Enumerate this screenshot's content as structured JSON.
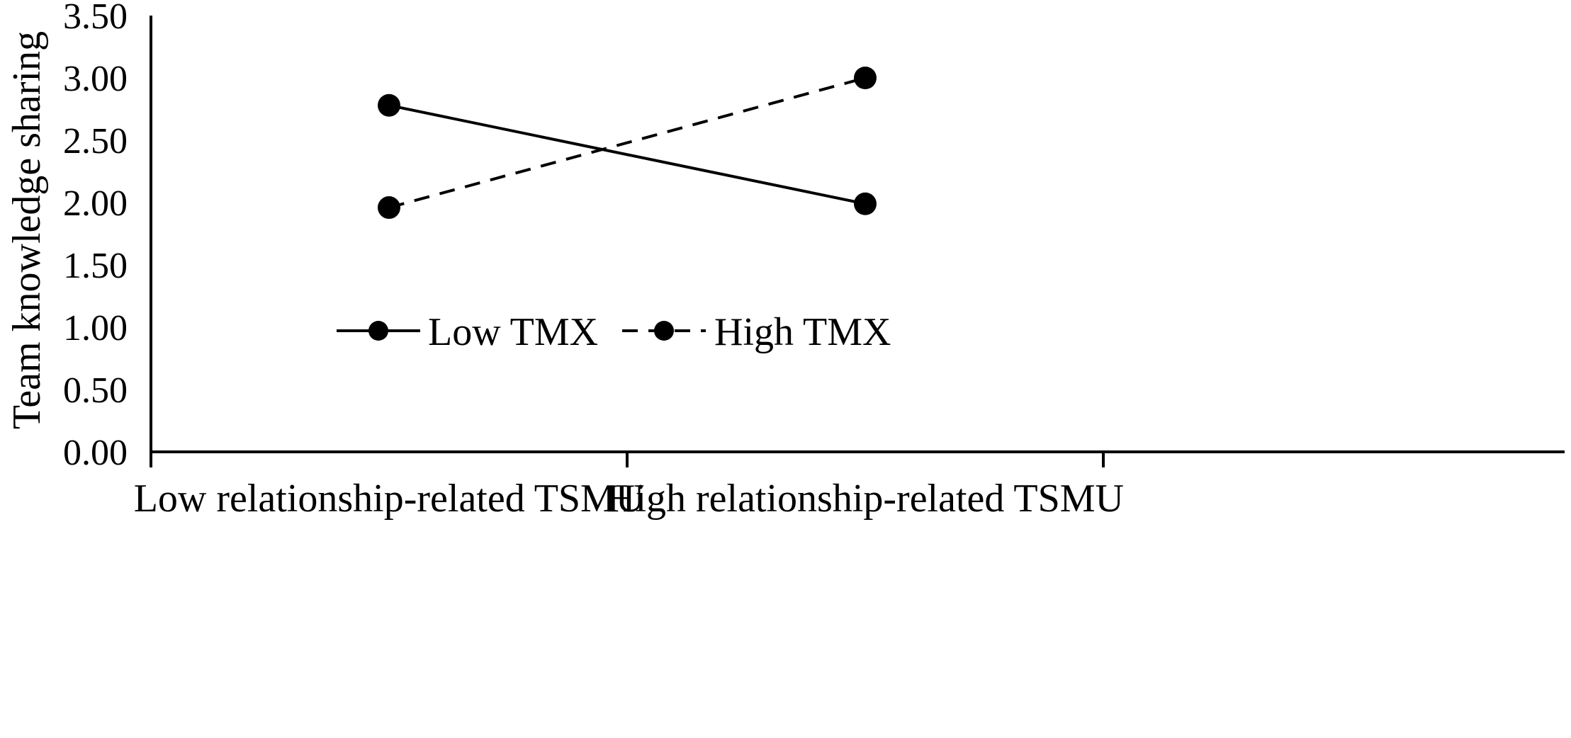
{
  "chart_data": {
    "type": "line",
    "categories": [
      "Low relationship-related TSMU",
      "High relationship-related TSMU"
    ],
    "ylabel": "Team knowledge sharing",
    "ylim": [
      0,
      3.5
    ],
    "yticks": [
      "0.00",
      "0.50",
      "1.00",
      "1.50",
      "2.00",
      "2.50",
      "3.00",
      "3.50"
    ],
    "grid": false,
    "legend_position": "center",
    "series": [
      {
        "name": "Low TMX",
        "values": [
          2.78,
          1.99
        ],
        "line_style": "solid",
        "color": "#000000"
      },
      {
        "name": "High TMX",
        "values": [
          1.96,
          3.0
        ],
        "line_style": "dashed",
        "color": "#000000"
      }
    ]
  }
}
